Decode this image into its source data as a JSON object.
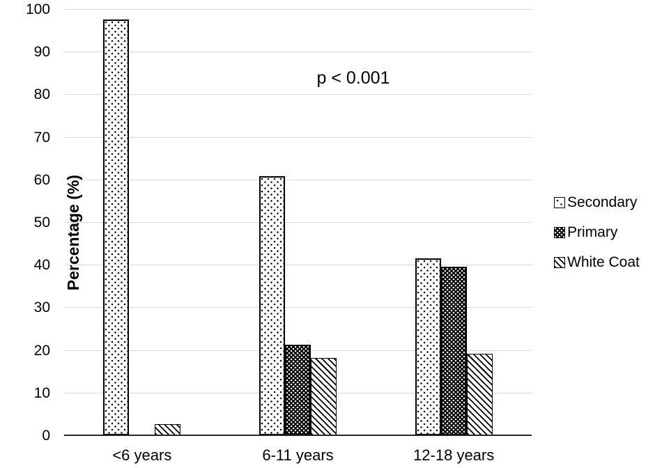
{
  "chart_data": {
    "type": "bar",
    "title": "",
    "ylabel": "Percentage (%)",
    "xlabel": "",
    "annotation": "p < 0.001",
    "categories": [
      "<6 years",
      "6-11 years",
      "12-18 years"
    ],
    "series": [
      {
        "name": "Secondary",
        "pattern": "dots-light",
        "values": [
          97.6,
          60.8,
          41.5
        ]
      },
      {
        "name": "Primary",
        "pattern": "dots-dark",
        "values": [
          0,
          21.3,
          39.6
        ]
      },
      {
        "name": "White Coat",
        "pattern": "diagonal-stripes",
        "values": [
          2.6,
          18.1,
          19.1
        ]
      }
    ],
    "ylim": [
      0,
      100
    ],
    "yticks": [
      0,
      10,
      20,
      30,
      40,
      50,
      60,
      70,
      80,
      90,
      100
    ],
    "grid": true,
    "legend_position": "right"
  },
  "colors": {
    "background": "#ffffff",
    "gridline": "#d9d9d9",
    "axis_line": "#262626",
    "text": "#000000",
    "bar_fill_light": "#ffffff",
    "bar_fill_dark": "#000000"
  }
}
